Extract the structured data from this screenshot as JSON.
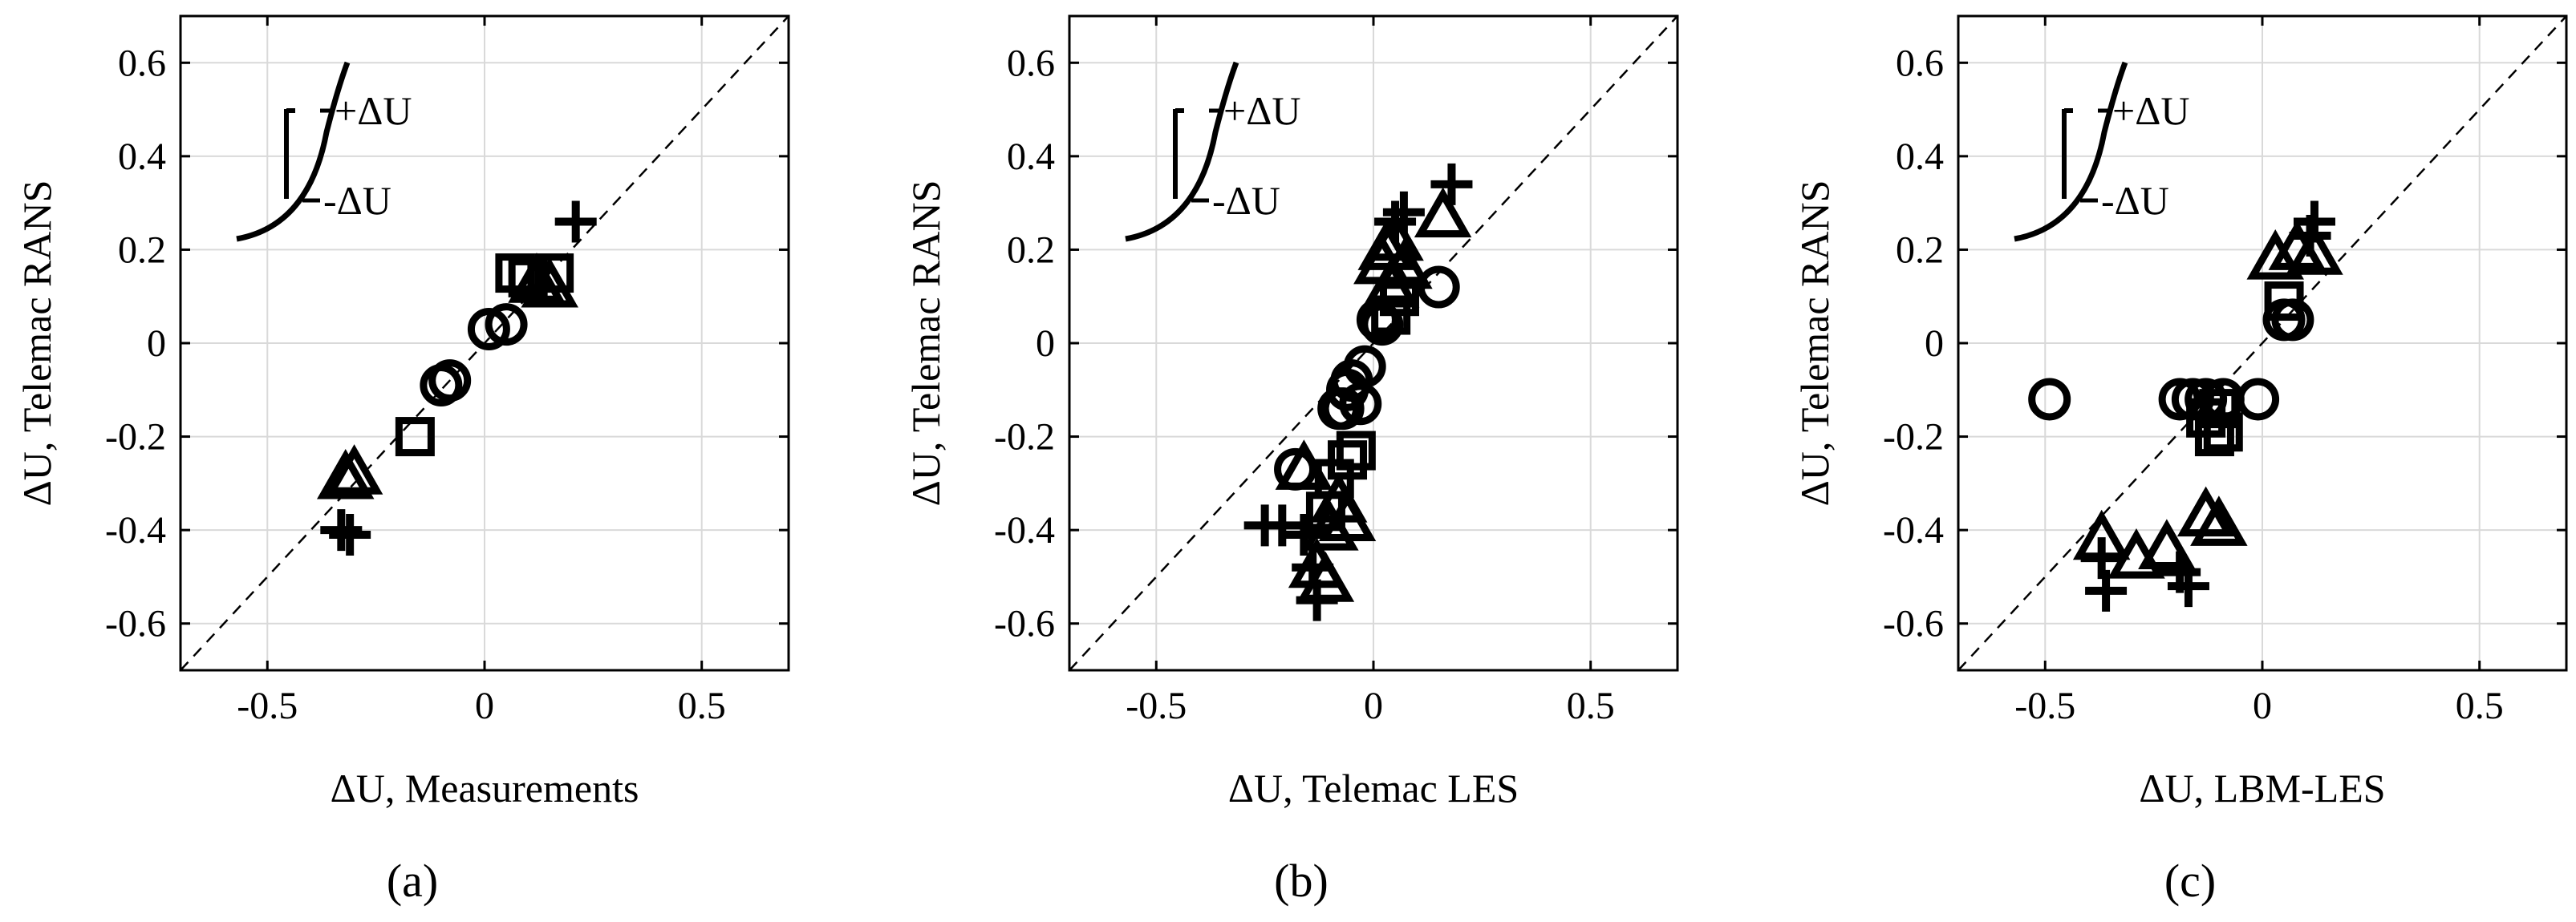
{
  "chart_data": [
    {
      "type": "scatter",
      "panel_label": "(a)",
      "xlabel": "ΔU, Measurements",
      "ylabel": "ΔU, Telemac RANS",
      "xlim": [
        -0.7,
        0.7
      ],
      "ylim": [
        -0.7,
        0.7
      ],
      "xticks": [
        "-0.5",
        "0",
        "0.5"
      ],
      "yticks": [
        "0.6",
        "0.4",
        "0.2",
        "0",
        "-0.2",
        "-0.4",
        "-0.6"
      ],
      "grid": true,
      "reference_line": "y = x (dashed)",
      "legend": {
        "position": "top-left",
        "upper": "+ΔU",
        "lower": "-ΔU"
      },
      "series": [
        {
          "marker": "plus",
          "points": [
            [
              0.21,
              0.26
            ],
            [
              -0.31,
              -0.41
            ],
            [
              -0.33,
              -0.4
            ]
          ]
        },
        {
          "marker": "triangle",
          "points": [
            [
              -0.3,
              -0.28
            ],
            [
              -0.32,
              -0.29
            ],
            [
              0.12,
              0.13
            ],
            [
              0.15,
              0.12
            ]
          ]
        },
        {
          "marker": "square",
          "points": [
            [
              0.07,
              0.15
            ],
            [
              0.1,
              0.14
            ],
            [
              0.16,
              0.15
            ],
            [
              -0.16,
              -0.2
            ]
          ]
        },
        {
          "marker": "circle",
          "points": [
            [
              0.01,
              0.03
            ],
            [
              0.05,
              0.04
            ],
            [
              -0.08,
              -0.08
            ],
            [
              -0.1,
              -0.09
            ]
          ]
        }
      ]
    },
    {
      "type": "scatter",
      "panel_label": "(b)",
      "xlabel": "ΔU, Telemac LES",
      "ylabel": "ΔU, Telemac RANS",
      "xlim": [
        -0.7,
        0.7
      ],
      "ylim": [
        -0.7,
        0.7
      ],
      "xticks": [
        "-0.5",
        "0",
        "0.5"
      ],
      "yticks": [
        "0.6",
        "0.4",
        "0.2",
        "0",
        "-0.2",
        "-0.4",
        "-0.6"
      ],
      "grid": true,
      "reference_line": "y = x (dashed)",
      "legend": {
        "position": "top-left",
        "upper": "+ΔU",
        "lower": "-ΔU"
      },
      "series": [
        {
          "marker": "plus",
          "points": [
            [
              0.18,
              0.34
            ],
            [
              0.07,
              0.28
            ],
            [
              0.05,
              0.26
            ],
            [
              -0.25,
              -0.39
            ],
            [
              -0.21,
              -0.39
            ],
            [
              -0.14,
              -0.48
            ],
            [
              -0.13,
              -0.55
            ],
            [
              -0.16,
              -0.41
            ]
          ]
        },
        {
          "marker": "triangle",
          "points": [
            [
              0.16,
              0.27
            ],
            [
              0.05,
              0.22
            ],
            [
              0.03,
              0.2
            ],
            [
              0.07,
              0.16
            ],
            [
              0.02,
              0.17
            ],
            [
              0.04,
              0.12
            ],
            [
              -0.06,
              -0.38
            ],
            [
              -0.1,
              -0.4
            ],
            [
              -0.16,
              -0.27
            ],
            [
              -0.13,
              -0.48
            ],
            [
              -0.11,
              -0.51
            ],
            [
              -0.08,
              -0.34
            ]
          ]
        },
        {
          "marker": "square",
          "points": [
            [
              0.06,
              0.1
            ],
            [
              0.04,
              0.06
            ],
            [
              -0.04,
              -0.23
            ],
            [
              -0.06,
              -0.25
            ],
            [
              -0.09,
              -0.29
            ],
            [
              -0.11,
              -0.36
            ]
          ]
        },
        {
          "marker": "circle",
          "points": [
            [
              0.15,
              0.12
            ],
            [
              0.02,
              0.04
            ],
            [
              0.01,
              0.05
            ],
            [
              -0.02,
              -0.05
            ],
            [
              -0.05,
              -0.08
            ],
            [
              -0.06,
              -0.1
            ],
            [
              -0.08,
              -0.14
            ],
            [
              -0.03,
              -0.13
            ],
            [
              -0.18,
              -0.27
            ],
            [
              -0.07,
              -0.14
            ]
          ]
        }
      ]
    },
    {
      "type": "scatter",
      "panel_label": "(c)",
      "xlabel": "ΔU, LBM-LES",
      "ylabel": "ΔU, Telemac RANS",
      "xlim": [
        -0.7,
        0.7
      ],
      "ylim": [
        -0.7,
        0.7
      ],
      "xticks": [
        "-0.5",
        "0",
        "0.5"
      ],
      "yticks": [
        "0.6",
        "0.4",
        "0.2",
        "0",
        "-0.2",
        "-0.4",
        "-0.6"
      ],
      "grid": true,
      "reference_line": "y = x (dashed)",
      "legend": {
        "position": "top-left",
        "upper": "+ΔU",
        "lower": "-ΔU"
      },
      "series": [
        {
          "marker": "plus",
          "points": [
            [
              0.12,
              0.26
            ],
            [
              0.11,
              0.23
            ],
            [
              -0.36,
              -0.53
            ],
            [
              -0.17,
              -0.52
            ],
            [
              -0.19,
              -0.49
            ],
            [
              -0.37,
              -0.46
            ]
          ]
        },
        {
          "marker": "triangle",
          "points": [
            [
              0.12,
              0.19
            ],
            [
              0.03,
              0.18
            ],
            [
              0.08,
              0.2
            ],
            [
              -0.37,
              -0.42
            ],
            [
              -0.29,
              -0.46
            ],
            [
              -0.22,
              -0.44
            ],
            [
              -0.13,
              -0.37
            ],
            [
              -0.1,
              -0.39
            ]
          ]
        },
        {
          "marker": "square",
          "points": [
            [
              0.05,
              0.09
            ],
            [
              -0.09,
              -0.19
            ],
            [
              -0.11,
              -0.2
            ],
            [
              -0.13,
              -0.16
            ],
            [
              -0.1,
              -0.14
            ]
          ]
        },
        {
          "marker": "circle",
          "points": [
            [
              -0.49,
              -0.12
            ],
            [
              -0.19,
              -0.12
            ],
            [
              -0.16,
              -0.12
            ],
            [
              -0.13,
              -0.12
            ],
            [
              -0.09,
              -0.12
            ],
            [
              -0.01,
              -0.12
            ],
            [
              0.05,
              0.05
            ],
            [
              0.07,
              0.05
            ]
          ]
        }
      ]
    }
  ]
}
